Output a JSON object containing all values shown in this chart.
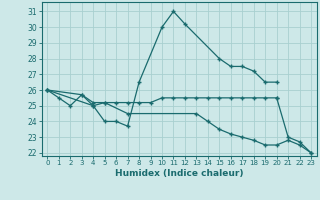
{
  "xlabel": "Humidex (Indice chaleur)",
  "bg_color": "#cde8e8",
  "grid_color": "#a8d0d0",
  "line_color": "#1a6b6e",
  "xlim": [
    -0.5,
    23.5
  ],
  "ylim": [
    21.8,
    31.6
  ],
  "yticks": [
    22,
    23,
    24,
    25,
    26,
    27,
    28,
    29,
    30,
    31
  ],
  "xticks": [
    0,
    1,
    2,
    3,
    4,
    5,
    6,
    7,
    8,
    9,
    10,
    11,
    12,
    13,
    14,
    15,
    16,
    17,
    18,
    19,
    20,
    21,
    22,
    23
  ],
  "lines": [
    {
      "x": [
        0,
        1,
        2,
        3,
        4,
        5,
        6,
        7,
        8,
        10,
        11,
        12,
        15,
        16,
        17,
        18,
        19,
        20
      ],
      "y": [
        26.0,
        25.5,
        25.0,
        25.7,
        25.0,
        24.0,
        24.0,
        23.7,
        26.5,
        30.0,
        31.0,
        30.2,
        28.0,
        27.5,
        27.5,
        27.2,
        26.5,
        26.5
      ]
    },
    {
      "x": [
        0,
        3,
        4,
        5,
        6,
        7,
        8,
        9,
        10,
        11,
        12,
        13,
        14,
        15,
        16,
        17,
        18,
        19,
        20
      ],
      "y": [
        26.0,
        25.7,
        25.2,
        25.2,
        25.2,
        25.2,
        25.2,
        25.2,
        25.5,
        25.5,
        25.5,
        25.5,
        25.5,
        25.5,
        25.5,
        25.5,
        25.5,
        25.5,
        25.5
      ]
    },
    {
      "x": [
        0,
        4,
        5,
        7,
        13,
        14,
        15,
        16,
        17,
        18,
        19,
        20,
        21,
        22,
        23
      ],
      "y": [
        26.0,
        25.0,
        25.2,
        24.5,
        24.5,
        24.0,
        23.5,
        23.2,
        23.0,
        22.8,
        22.5,
        22.5,
        22.8,
        22.5,
        22.0
      ]
    },
    {
      "x": [
        20,
        21,
        22,
        23
      ],
      "y": [
        25.5,
        23.0,
        22.7,
        22.0
      ]
    }
  ]
}
